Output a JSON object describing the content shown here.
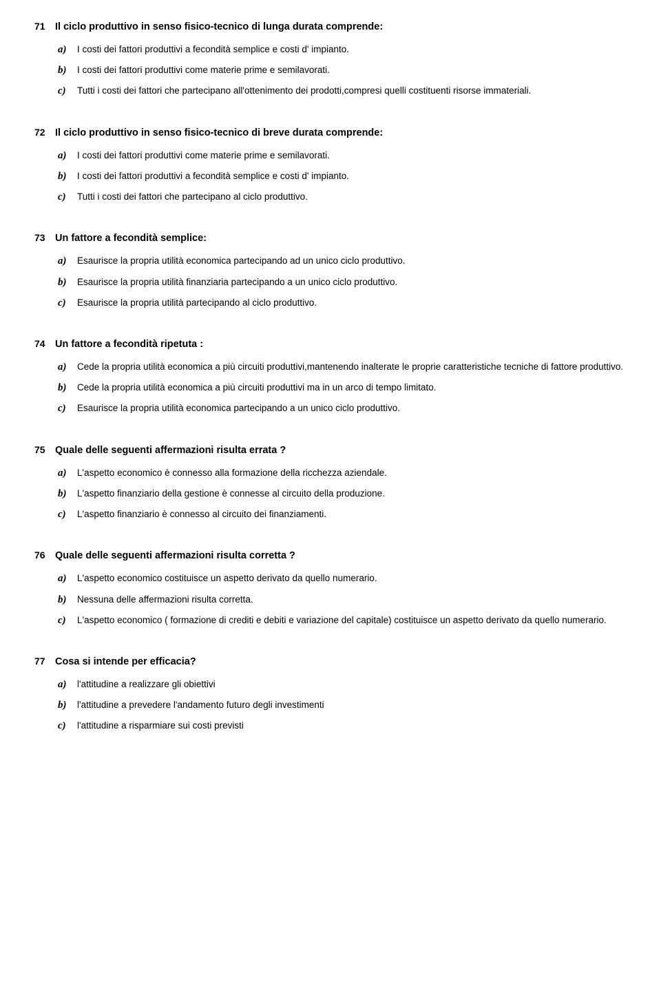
{
  "questions": [
    {
      "number": "71",
      "text": "Il ciclo produttivo in senso fisico-tecnico di lunga durata comprende:",
      "options": [
        {
          "label": "a)",
          "text": "I costi dei fattori produttivi a fecondità semplice e costi d' impianto."
        },
        {
          "label": "b)",
          "text": "I costi dei fattori produttivi come materie prime e semilavorati."
        },
        {
          "label": "c)",
          "text": "Tutti i costi dei fattori che partecipano all'ottenimento dei prodotti,compresi quelli costituenti risorse immateriali."
        }
      ]
    },
    {
      "number": "72",
      "text": "Il ciclo produttivo in senso fisico-tecnico di breve durata comprende:",
      "options": [
        {
          "label": "a)",
          "text": "I costi dei fattori produttivi come materie prime e semilavorati."
        },
        {
          "label": "b)",
          "text": "I costi dei fattori produttivi a fecondità semplice e costi d' impianto."
        },
        {
          "label": "c)",
          "text": "Tutti i costi dei fattori che partecipano al ciclo produttivo."
        }
      ]
    },
    {
      "number": "73",
      "text": "Un fattore a fecondità semplice:",
      "options": [
        {
          "label": "a)",
          "text": "Esaurisce la propria utilità economica partecipando ad un unico ciclo produttivo."
        },
        {
          "label": "b)",
          "text": "Esaurisce la propria utilità finanziaria partecipando a un unico ciclo produttivo."
        },
        {
          "label": "c)",
          "text": "Esaurisce la propria utilità partecipando al  ciclo produttivo."
        }
      ]
    },
    {
      "number": "74",
      "text": "Un fattore a fecondità ripetuta :",
      "options": [
        {
          "label": "a)",
          "text": "Cede la propria utilità economica a più circuiti produttivi,mantenendo inalterate le proprie caratteristiche tecniche di fattore produttivo."
        },
        {
          "label": "b)",
          "text": "Cede la propria utilità economica a più circuiti produttivi ma in un arco di tempo limitato."
        },
        {
          "label": "c)",
          "text": "Esaurisce la propria utilità economica partecipando a un unico ciclo produttivo."
        }
      ]
    },
    {
      "number": "75",
      "text": "Quale delle seguenti affermazioni risulta errata ?",
      "options": [
        {
          "label": "a)",
          "text": "L'aspetto economico è  connesso alla formazione della ricchezza aziendale."
        },
        {
          "label": "b)",
          "text": "L'aspetto finanziario della gestione è connesse al circuito della produzione."
        },
        {
          "label": "c)",
          "text": "L'aspetto finanziario è connesso al  circuito dei finanziamenti."
        }
      ]
    },
    {
      "number": "76",
      "text": "Quale delle seguenti affermazioni risulta corretta ?",
      "options": [
        {
          "label": "a)",
          "text": "L'aspetto economico costituisce un aspetto derivato da quello numerario."
        },
        {
          "label": "b)",
          "text": "Nessuna delle affermazioni risulta corretta."
        },
        {
          "label": "c)",
          "text": "L'aspetto economico ( formazione di crediti e debiti e variazione del capitale) costituisce un aspetto derivato da quello numerario."
        }
      ]
    },
    {
      "number": "77",
      "text": "Cosa si intende per efficacia?",
      "options": [
        {
          "label": "a)",
          "text": "l'attitudine a realizzare gli obiettivi"
        },
        {
          "label": "b)",
          "text": "l'attitudine a prevedere l'andamento futuro degli investimenti"
        },
        {
          "label": "c)",
          "text": "l'attitudine a risparmiare sui costi previsti"
        }
      ]
    }
  ]
}
